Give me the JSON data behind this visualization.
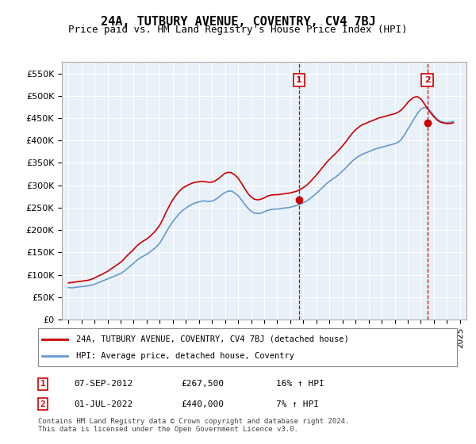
{
  "title": "24A, TUTBURY AVENUE, COVENTRY, CV4 7BJ",
  "subtitle": "Price paid vs. HM Land Registry's House Price Index (HPI)",
  "bg_color": "#e8f0f8",
  "plot_bg_color": "#e8f0f8",
  "hpi_color": "#6699cc",
  "price_color": "#cc0000",
  "vline_color": "#cc0000",
  "ylim_min": 0,
  "ylim_max": 575000,
  "yticks": [
    0,
    50000,
    100000,
    150000,
    200000,
    250000,
    300000,
    350000,
    400000,
    450000,
    500000,
    550000
  ],
  "ytick_labels": [
    "£0",
    "£50K",
    "£100K",
    "£150K",
    "£200K",
    "£250K",
    "£300K",
    "£350K",
    "£400K",
    "£450K",
    "£500K",
    "£550K"
  ],
  "xlim_min": 1994.5,
  "xlim_max": 2025.5,
  "xtick_years": [
    1995,
    1996,
    1997,
    1998,
    1999,
    2000,
    2001,
    2002,
    2003,
    2004,
    2005,
    2006,
    2007,
    2008,
    2009,
    2010,
    2011,
    2012,
    2013,
    2014,
    2015,
    2016,
    2017,
    2018,
    2019,
    2020,
    2021,
    2022,
    2023,
    2024,
    2025
  ],
  "sale1_x": 2012.67,
  "sale1_y": 267500,
  "sale1_label": "1",
  "sale1_date": "07-SEP-2012",
  "sale1_price": "£267,500",
  "sale1_hpi": "16% ↑ HPI",
  "sale2_x": 2022.5,
  "sale2_y": 440000,
  "sale2_label": "2",
  "sale2_date": "01-JUL-2022",
  "sale2_price": "£440,000",
  "sale2_hpi": "7% ↑ HPI",
  "legend_line1": "24A, TUTBURY AVENUE, COVENTRY, CV4 7BJ (detached house)",
  "legend_line2": "HPI: Average price, detached house, Coventry",
  "footer": "Contains HM Land Registry data © Crown copyright and database right 2024.\nThis data is licensed under the Open Government Licence v3.0.",
  "hpi_data_x": [
    1995.0,
    1995.25,
    1995.5,
    1995.75,
    1996.0,
    1996.25,
    1996.5,
    1996.75,
    1997.0,
    1997.25,
    1997.5,
    1997.75,
    1998.0,
    1998.25,
    1998.5,
    1998.75,
    1999.0,
    1999.25,
    1999.5,
    1999.75,
    2000.0,
    2000.25,
    2000.5,
    2000.75,
    2001.0,
    2001.25,
    2001.5,
    2001.75,
    2002.0,
    2002.25,
    2002.5,
    2002.75,
    2003.0,
    2003.25,
    2003.5,
    2003.75,
    2004.0,
    2004.25,
    2004.5,
    2004.75,
    2005.0,
    2005.25,
    2005.5,
    2005.75,
    2006.0,
    2006.25,
    2006.5,
    2006.75,
    2007.0,
    2007.25,
    2007.5,
    2007.75,
    2008.0,
    2008.25,
    2008.5,
    2008.75,
    2009.0,
    2009.25,
    2009.5,
    2009.75,
    2010.0,
    2010.25,
    2010.5,
    2010.75,
    2011.0,
    2011.25,
    2011.5,
    2011.75,
    2012.0,
    2012.25,
    2012.5,
    2012.75,
    2013.0,
    2013.25,
    2013.5,
    2013.75,
    2014.0,
    2014.25,
    2014.5,
    2014.75,
    2015.0,
    2015.25,
    2015.5,
    2015.75,
    2016.0,
    2016.25,
    2016.5,
    2016.75,
    2017.0,
    2017.25,
    2017.5,
    2017.75,
    2018.0,
    2018.25,
    2018.5,
    2018.75,
    2019.0,
    2019.25,
    2019.5,
    2019.75,
    2020.0,
    2020.25,
    2020.5,
    2020.75,
    2021.0,
    2021.25,
    2021.5,
    2021.75,
    2022.0,
    2022.25,
    2022.5,
    2022.75,
    2023.0,
    2023.25,
    2023.5,
    2023.75,
    2024.0,
    2024.25,
    2024.5
  ],
  "hpi_data_y": [
    72000,
    71000,
    72000,
    73000,
    74000,
    74500,
    75500,
    77000,
    79000,
    82000,
    85000,
    88000,
    91000,
    94000,
    97000,
    100000,
    103000,
    108000,
    114000,
    120000,
    126000,
    133000,
    138000,
    142000,
    146000,
    151000,
    157000,
    163000,
    171000,
    183000,
    196000,
    208000,
    219000,
    228000,
    237000,
    244000,
    249000,
    254000,
    258000,
    261000,
    263000,
    265000,
    265000,
    264000,
    265000,
    268000,
    273000,
    279000,
    284000,
    287000,
    287000,
    283000,
    277000,
    268000,
    258000,
    249000,
    242000,
    238000,
    237000,
    238000,
    241000,
    244000,
    246000,
    247000,
    247000,
    248000,
    249000,
    250000,
    251000,
    253000,
    255000,
    258000,
    261000,
    265000,
    270000,
    276000,
    282000,
    289000,
    296000,
    303000,
    309000,
    314000,
    319000,
    325000,
    332000,
    339000,
    347000,
    354000,
    360000,
    365000,
    369000,
    372000,
    375000,
    378000,
    381000,
    383000,
    385000,
    387000,
    389000,
    391000,
    393000,
    396000,
    402000,
    413000,
    425000,
    437000,
    449000,
    461000,
    470000,
    474000,
    472000,
    465000,
    456000,
    448000,
    443000,
    441000,
    440000,
    441000,
    443000
  ],
  "price_data_x": [
    1995.0,
    1995.25,
    1995.5,
    1995.75,
    1996.0,
    1996.25,
    1996.5,
    1996.75,
    1997.0,
    1997.25,
    1997.5,
    1997.75,
    1998.0,
    1998.25,
    1998.5,
    1998.75,
    1999.0,
    1999.25,
    1999.5,
    1999.75,
    2000.0,
    2000.25,
    2000.5,
    2000.75,
    2001.0,
    2001.25,
    2001.5,
    2001.75,
    2002.0,
    2002.25,
    2002.5,
    2002.75,
    2003.0,
    2003.25,
    2003.5,
    2003.75,
    2004.0,
    2004.25,
    2004.5,
    2004.75,
    2005.0,
    2005.25,
    2005.5,
    2005.75,
    2006.0,
    2006.25,
    2006.5,
    2006.75,
    2007.0,
    2007.25,
    2007.5,
    2007.75,
    2008.0,
    2008.25,
    2008.5,
    2008.75,
    2009.0,
    2009.25,
    2009.5,
    2009.75,
    2010.0,
    2010.25,
    2010.5,
    2010.75,
    2011.0,
    2011.25,
    2011.5,
    2011.75,
    2012.0,
    2012.25,
    2012.5,
    2012.75,
    2013.0,
    2013.25,
    2013.5,
    2013.75,
    2014.0,
    2014.25,
    2014.5,
    2014.75,
    2015.0,
    2015.25,
    2015.5,
    2015.75,
    2016.0,
    2016.25,
    2016.5,
    2016.75,
    2017.0,
    2017.25,
    2017.5,
    2017.75,
    2018.0,
    2018.25,
    2018.5,
    2018.75,
    2019.0,
    2019.25,
    2019.5,
    2019.75,
    2020.0,
    2020.25,
    2020.5,
    2020.75,
    2021.0,
    2021.25,
    2021.5,
    2021.75,
    2022.0,
    2022.25,
    2022.5,
    2022.75,
    2023.0,
    2023.25,
    2023.5,
    2023.75,
    2024.0,
    2024.25,
    2024.5
  ],
  "price_data_y": [
    82000,
    83000,
    84000,
    85000,
    86000,
    87000,
    88000,
    90000,
    93000,
    97000,
    100000,
    104000,
    108000,
    113000,
    118000,
    123000,
    128000,
    135000,
    143000,
    150000,
    157000,
    165000,
    171000,
    176000,
    180000,
    186000,
    193000,
    201000,
    211000,
    225000,
    241000,
    255000,
    268000,
    278000,
    287000,
    294000,
    298000,
    302000,
    305000,
    307000,
    308000,
    309000,
    308000,
    307000,
    307000,
    310000,
    315000,
    321000,
    327000,
    329000,
    328000,
    323000,
    316000,
    305000,
    293000,
    282000,
    274000,
    269000,
    267500,
    269000,
    272000,
    276000,
    278000,
    279000,
    279000,
    280000,
    281000,
    282000,
    283000,
    285000,
    287000,
    290500,
    295000,
    300000,
    307000,
    315000,
    323000,
    332000,
    341000,
    350000,
    358000,
    365000,
    372000,
    380000,
    388000,
    397000,
    407000,
    416000,
    424000,
    430000,
    435000,
    438000,
    441000,
    444000,
    447000,
    450000,
    452000,
    454000,
    456000,
    458000,
    460000,
    463000,
    468000,
    476000,
    485000,
    492000,
    497000,
    498000,
    493000,
    483000,
    472000,
    462000,
    453000,
    446000,
    441000,
    439000,
    438000,
    438000,
    440000
  ]
}
